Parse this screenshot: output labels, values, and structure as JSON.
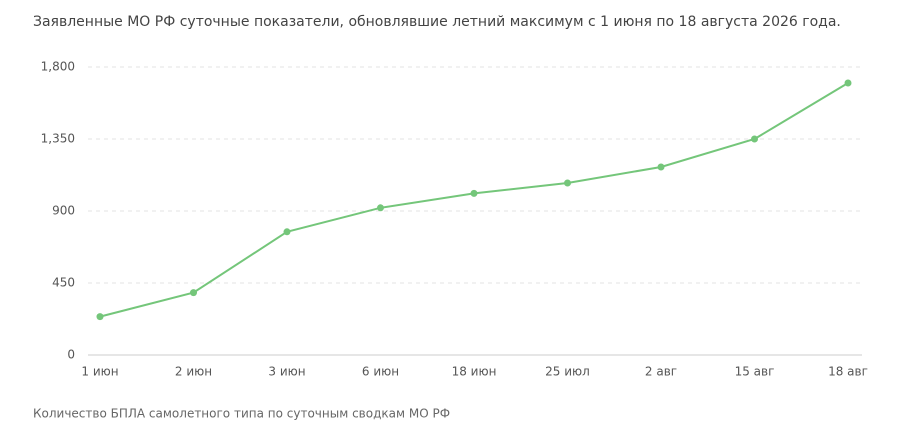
{
  "chart_data": {
    "type": "line",
    "title": "Заявленные МО РФ суточные показатели, обновлявшие летний максимум с 1 июня по 18 августа 2026 года.",
    "footnote": "Количество БПЛА самолетного типа по суточным сводкам МО РФ",
    "categories": [
      "1 июн",
      "2 июн",
      "3 июн",
      "6 июн",
      "18 июн",
      "25 июл",
      "2 авг",
      "15 авг",
      "18 авг"
    ],
    "values": [
      240,
      390,
      770,
      920,
      1010,
      1075,
      1175,
      1350,
      1700
    ],
    "color": "#74c67a",
    "ylim": [
      0,
      1800
    ],
    "yticks": [
      0,
      450,
      900,
      {
        "value": 1350,
        "label": "1,350"
      },
      {
        "value": 1800,
        "label": "1,800"
      }
    ],
    "grid": true
  }
}
